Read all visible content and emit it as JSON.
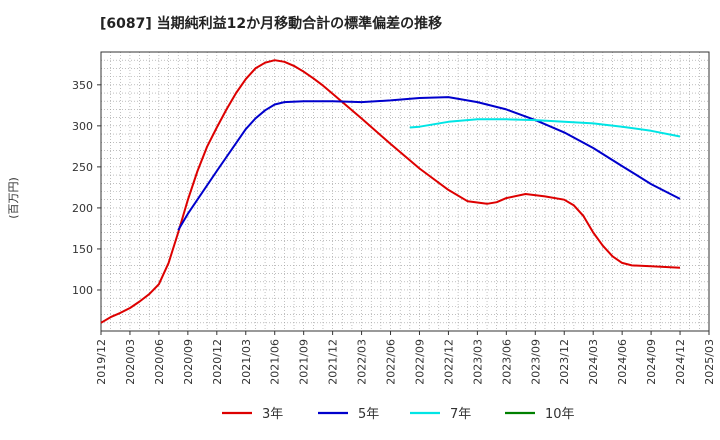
{
  "chart_data": {
    "type": "line",
    "title": "[6087]  当期純利益12か月移動合計の標準偏差の推移",
    "ylabel": "(百万円)",
    "xlabel": "",
    "ylim": [
      50,
      390
    ],
    "yticks": [
      100,
      150,
      200,
      250,
      300,
      350
    ],
    "xlim": [
      "2019/12",
      "2025/03"
    ],
    "xticks": [
      "2019/12",
      "2020/03",
      "2020/06",
      "2020/09",
      "2020/12",
      "2021/03",
      "2021/06",
      "2021/09",
      "2021/12",
      "2022/03",
      "2022/06",
      "2022/09",
      "2022/12",
      "2023/03",
      "2023/06",
      "2023/09",
      "2023/12",
      "2024/03",
      "2024/06",
      "2024/09",
      "2024/12",
      "2025/03"
    ],
    "grid": true,
    "legend_position": "bottom",
    "series": [
      {
        "name": "3年",
        "color": "#dd0000",
        "points": [
          [
            "2019/12",
            60
          ],
          [
            "2020/01",
            67
          ],
          [
            "2020/02",
            72
          ],
          [
            "2020/03",
            78
          ],
          [
            "2020/04",
            86
          ],
          [
            "2020/05",
            95
          ],
          [
            "2020/06",
            107
          ],
          [
            "2020/07",
            133
          ],
          [
            "2020/08",
            170
          ],
          [
            "2020/09",
            210
          ],
          [
            "2020/10",
            245
          ],
          [
            "2020/11",
            275
          ],
          [
            "2020/12",
            298
          ],
          [
            "2021/01",
            320
          ],
          [
            "2021/02",
            340
          ],
          [
            "2021/03",
            357
          ],
          [
            "2021/04",
            370
          ],
          [
            "2021/05",
            377
          ],
          [
            "2021/06",
            380
          ],
          [
            "2021/07",
            378
          ],
          [
            "2021/08",
            373
          ],
          [
            "2021/09",
            366
          ],
          [
            "2021/10",
            358
          ],
          [
            "2021/11",
            349
          ],
          [
            "2021/12",
            339
          ],
          [
            "2022/03",
            309
          ],
          [
            "2022/06",
            278
          ],
          [
            "2022/09",
            248
          ],
          [
            "2022/12",
            222
          ],
          [
            "2023/02",
            208
          ],
          [
            "2023/04",
            205
          ],
          [
            "2023/05",
            207
          ],
          [
            "2023/06",
            212
          ],
          [
            "2023/08",
            217
          ],
          [
            "2023/10",
            214
          ],
          [
            "2023/12",
            210
          ],
          [
            "2024/01",
            203
          ],
          [
            "2024/02",
            190
          ],
          [
            "2024/03",
            170
          ],
          [
            "2024/04",
            154
          ],
          [
            "2024/05",
            141
          ],
          [
            "2024/06",
            133
          ],
          [
            "2024/07",
            130
          ],
          [
            "2024/09",
            129
          ],
          [
            "2024/12",
            127
          ]
        ]
      },
      {
        "name": "5年",
        "color": "#0000cc",
        "points": [
          [
            "2020/08",
            173
          ],
          [
            "2020/09",
            193
          ],
          [
            "2020/12",
            245
          ],
          [
            "2021/03",
            296
          ],
          [
            "2021/04",
            309
          ],
          [
            "2021/05",
            319
          ],
          [
            "2021/06",
            326
          ],
          [
            "2021/07",
            329
          ],
          [
            "2021/09",
            330
          ],
          [
            "2021/12",
            330
          ],
          [
            "2022/03",
            329
          ],
          [
            "2022/06",
            331
          ],
          [
            "2022/09",
            334
          ],
          [
            "2022/12",
            335
          ],
          [
            "2023/03",
            329
          ],
          [
            "2023/06",
            320
          ],
          [
            "2023/09",
            307
          ],
          [
            "2023/12",
            292
          ],
          [
            "2024/03",
            273
          ],
          [
            "2024/06",
            251
          ],
          [
            "2024/09",
            229
          ],
          [
            "2024/12",
            211
          ]
        ]
      },
      {
        "name": "7年",
        "color": "#00e5e5",
        "points": [
          [
            "2022/08",
            298
          ],
          [
            "2022/09",
            299
          ],
          [
            "2022/12",
            305
          ],
          [
            "2023/03",
            308
          ],
          [
            "2023/06",
            308
          ],
          [
            "2023/09",
            307
          ],
          [
            "2023/12",
            305
          ],
          [
            "2024/03",
            303
          ],
          [
            "2024/06",
            299
          ],
          [
            "2024/09",
            294
          ],
          [
            "2024/12",
            287
          ]
        ]
      },
      {
        "name": "10年",
        "color": "#008000",
        "points": []
      }
    ]
  }
}
